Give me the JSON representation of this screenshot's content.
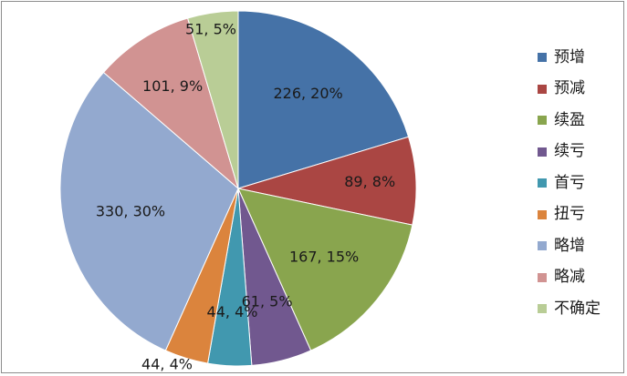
{
  "chart_data": {
    "type": "pie",
    "start_angle_deg": 0,
    "direction": "clockwise",
    "legend_position": "right",
    "slices": [
      {
        "name": "预增",
        "value": 226,
        "percent": "20%",
        "color": "#4572A7",
        "label": "226, 20%"
      },
      {
        "name": "预减",
        "value": 89,
        "percent": "8%",
        "color": "#AA4643",
        "label": "89, 8%"
      },
      {
        "name": "续盈",
        "value": 167,
        "percent": "15%",
        "color": "#89A54E",
        "label": "167, 15%"
      },
      {
        "name": "续亏",
        "value": 61,
        "percent": "5%",
        "color": "#71588F",
        "label": "61, 5%"
      },
      {
        "name": "首亏",
        "value": 44,
        "percent": "4%",
        "color": "#4198AF",
        "label": "44, 4%"
      },
      {
        "name": "扭亏",
        "value": 44,
        "percent": "4%",
        "color": "#DB843D",
        "label": "44, 4%"
      },
      {
        "name": "略增",
        "value": 330,
        "percent": "30%",
        "color": "#93A9CF",
        "label": "330, 30%"
      },
      {
        "name": "略减",
        "value": 101,
        "percent": "9%",
        "color": "#D19392",
        "label": "101, 9%"
      },
      {
        "name": "不确定",
        "value": 51,
        "percent": "5%",
        "color": "#B9CD96",
        "label": "51, 5%"
      }
    ]
  }
}
